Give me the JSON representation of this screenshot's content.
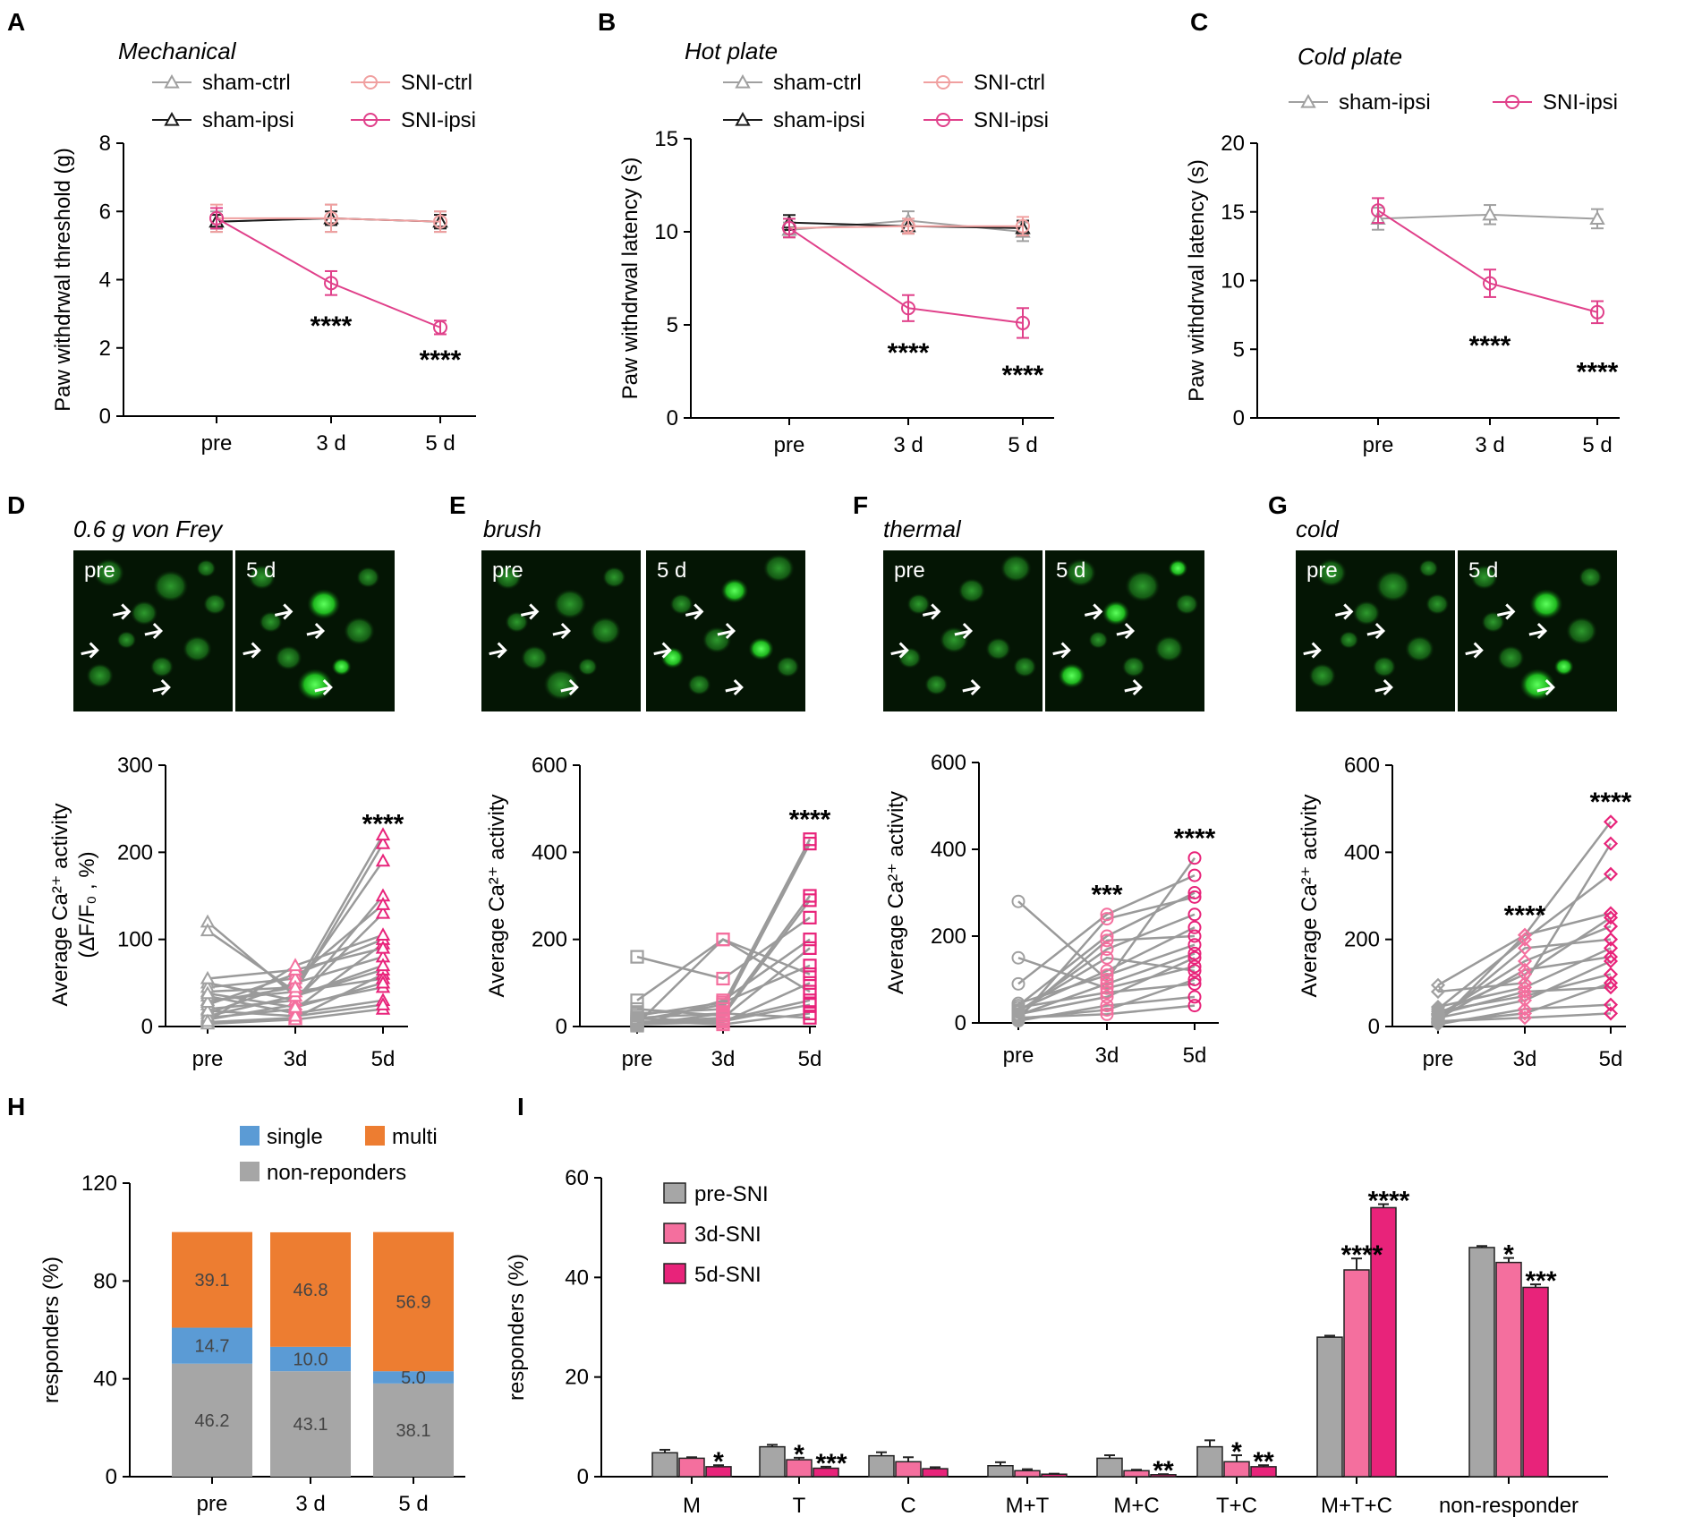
{
  "colors": {
    "gray": "#a0a0a0",
    "black": "#1a1a1a",
    "salmon": "#f0a0a0",
    "pink": "#e0408a",
    "hot": "#e8237a",
    "lightpink": "#f46f9e",
    "blue": "#5b9bd5",
    "orange": "#ed7d31",
    "grayfill": "#a6a6a6",
    "micro_green": "#2e9a2e"
  },
  "panels": {
    "A": "A",
    "B": "B",
    "C": "C",
    "D": "D",
    "E": "E",
    "F": "F",
    "G": "G",
    "H": "H",
    "I": "I"
  },
  "chart_data": [
    {
      "id": "A",
      "type": "line",
      "title": "Mechanical",
      "ylabel": "Paw withdrwal threshold (g)",
      "ylim": [
        0,
        8
      ],
      "yticks": [
        0,
        2,
        4,
        6,
        8
      ],
      "categories": [
        "pre",
        "3 d",
        "5 d"
      ],
      "series": [
        {
          "name": "sham-ctrl",
          "marker": "triangle",
          "color": "#a0a0a0",
          "values": [
            5.7,
            5.8,
            5.7
          ],
          "err": [
            0.3,
            0.4,
            0.3
          ]
        },
        {
          "name": "sham-ipsi",
          "marker": "triangle",
          "color": "#1a1a1a",
          "values": [
            5.7,
            5.8,
            5.7
          ],
          "err": [
            0.2,
            0.2,
            0.2
          ]
        },
        {
          "name": "SNI-ctrl",
          "marker": "circle",
          "color": "#f0a0a0",
          "values": [
            5.8,
            5.8,
            5.7
          ],
          "err": [
            0.4,
            0.4,
            0.3
          ]
        },
        {
          "name": "SNI-ipsi",
          "marker": "circle",
          "color": "#e0408a",
          "values": [
            5.8,
            3.9,
            2.6
          ],
          "err": [
            0.3,
            0.35,
            0.2
          ]
        }
      ],
      "annotations": [
        {
          "x": "3 d",
          "text": "****",
          "y": 2.7
        },
        {
          "x": "5 d",
          "text": "****",
          "y": 1.7
        }
      ]
    },
    {
      "id": "B",
      "type": "line",
      "title": "Hot plate",
      "ylabel": "Paw withdrwal latency (s)",
      "ylim": [
        0,
        15
      ],
      "yticks": [
        0,
        5,
        10,
        15
      ],
      "categories": [
        "pre",
        "3 d",
        "5 d"
      ],
      "series": [
        {
          "name": "sham-ctrl",
          "marker": "triangle",
          "color": "#a0a0a0",
          "values": [
            10.1,
            10.6,
            10.0
          ],
          "err": [
            0.4,
            0.5,
            0.5
          ]
        },
        {
          "name": "sham-ipsi",
          "marker": "triangle",
          "color": "#1a1a1a",
          "values": [
            10.5,
            10.3,
            10.2
          ],
          "err": [
            0.4,
            0.4,
            0.4
          ]
        },
        {
          "name": "SNI-ctrl",
          "marker": "circle",
          "color": "#f0a0a0",
          "values": [
            10.2,
            10.3,
            10.3
          ],
          "err": [
            0.5,
            0.4,
            0.5
          ]
        },
        {
          "name": "SNI-ipsi",
          "marker": "circle",
          "color": "#e0408a",
          "values": [
            10.2,
            5.9,
            5.1
          ],
          "err": [
            0.5,
            0.7,
            0.8
          ]
        }
      ],
      "annotations": [
        {
          "x": "3 d",
          "text": "****",
          "y": 3.6
        },
        {
          "x": "5 d",
          "text": "****",
          "y": 2.4
        }
      ]
    },
    {
      "id": "C",
      "type": "line",
      "title": "Cold plate",
      "ylabel": "Paw withdrwal latency (s)",
      "ylim": [
        0,
        20
      ],
      "yticks": [
        0,
        5,
        10,
        15,
        20
      ],
      "categories": [
        "pre",
        "3 d",
        "5 d"
      ],
      "series": [
        {
          "name": "sham-ipsi",
          "marker": "triangle",
          "color": "#a0a0a0",
          "values": [
            14.5,
            14.8,
            14.5
          ],
          "err": [
            0.8,
            0.7,
            0.7
          ]
        },
        {
          "name": "SNI-ipsi",
          "marker": "circle",
          "color": "#e0408a",
          "values": [
            15.1,
            9.8,
            7.7
          ],
          "err": [
            0.9,
            1.0,
            0.8
          ]
        }
      ],
      "annotations": [
        {
          "x": "3 d",
          "text": "****",
          "y": 5.4
        },
        {
          "x": "5 d",
          "text": "****",
          "y": 3.5
        }
      ]
    },
    {
      "id": "D",
      "type": "scatter",
      "title": "0.6 g von Frey",
      "marker": "triangle",
      "ylabel": "Average Ca²⁺ activity",
      "ylabel2": "(ΔF/F₀ , %)",
      "ylim": [
        0,
        300
      ],
      "yticks": [
        0,
        100,
        200,
        300
      ],
      "categories": [
        "pre",
        "3d",
        "5d"
      ],
      "paired": [
        [
          5,
          10,
          60
        ],
        [
          10,
          20,
          95
        ],
        [
          20,
          30,
          150
        ],
        [
          30,
          40,
          210
        ],
        [
          40,
          45,
          220
        ],
        [
          50,
          30,
          130
        ],
        [
          25,
          60,
          100
        ],
        [
          15,
          50,
          80
        ],
        [
          8,
          25,
          45
        ],
        [
          35,
          15,
          30
        ],
        [
          45,
          55,
          140
        ],
        [
          12,
          35,
          65
        ],
        [
          3,
          8,
          20
        ],
        [
          55,
          65,
          90
        ],
        [
          120,
          35,
          70
        ],
        [
          110,
          40,
          55
        ],
        [
          18,
          12,
          25
        ],
        [
          28,
          45,
          190
        ],
        [
          6,
          70,
          105
        ],
        [
          38,
          22,
          50
        ]
      ],
      "annotations": [
        {
          "x": "5d",
          "text": "****",
          "y": 235
        }
      ]
    },
    {
      "id": "E",
      "type": "scatter",
      "title": "brush",
      "marker": "square",
      "ylabel": "Average Ca²⁺ activity",
      "ylim": [
        0,
        600
      ],
      "yticks": [
        0,
        200,
        400,
        600
      ],
      "categories": [
        "pre",
        "3d",
        "5d"
      ],
      "paired": [
        [
          5,
          10,
          100
        ],
        [
          10,
          20,
          180
        ],
        [
          20,
          30,
          300
        ],
        [
          30,
          40,
          420
        ],
        [
          15,
          50,
          430
        ],
        [
          160,
          110,
          250
        ],
        [
          60,
          200,
          80
        ],
        [
          8,
          15,
          60
        ],
        [
          25,
          55,
          140
        ],
        [
          12,
          5,
          30
        ],
        [
          2,
          60,
          200
        ],
        [
          40,
          25,
          290
        ],
        [
          18,
          12,
          50
        ],
        [
          6,
          200,
          120
        ],
        [
          3,
          30,
          20
        ]
      ],
      "annotations": [
        {
          "x": "5d",
          "text": "****",
          "y": 480
        }
      ]
    },
    {
      "id": "F",
      "type": "scatter",
      "title": "thermal",
      "marker": "circle",
      "ylabel": "Average Ca²⁺ activity",
      "ylim": [
        0,
        600
      ],
      "yticks": [
        0,
        200,
        400,
        600
      ],
      "categories": [
        "pre",
        "3d",
        "5d"
      ],
      "paired": [
        [
          10,
          30,
          100
        ],
        [
          20,
          60,
          150
        ],
        [
          30,
          120,
          220
        ],
        [
          40,
          200,
          300
        ],
        [
          280,
          100,
          380
        ],
        [
          150,
          80,
          130
        ],
        [
          90,
          250,
          340
        ],
        [
          15,
          190,
          200
        ],
        [
          5,
          40,
          60
        ],
        [
          25,
          170,
          250
        ],
        [
          35,
          70,
          90
        ],
        [
          12,
          20,
          40
        ],
        [
          45,
          110,
          180
        ],
        [
          8,
          240,
          290
        ],
        [
          18,
          90,
          160
        ],
        [
          28,
          150,
          120
        ]
      ],
      "annotations": [
        {
          "x": "3d",
          "text": "***",
          "y": 300
        },
        {
          "x": "5d",
          "text": "****",
          "y": 430
        }
      ]
    },
    {
      "id": "G",
      "type": "scatter",
      "title": "cold",
      "marker": "diamond",
      "ylabel": "Average Ca²⁺ activity",
      "ylim": [
        0,
        600
      ],
      "yticks": [
        0,
        200,
        400,
        600
      ],
      "categories": [
        "pre",
        "3d",
        "5d"
      ],
      "paired": [
        [
          10,
          30,
          100
        ],
        [
          20,
          60,
          150
        ],
        [
          30,
          120,
          250
        ],
        [
          40,
          200,
          350
        ],
        [
          95,
          210,
          470
        ],
        [
          80,
          100,
          420
        ],
        [
          15,
          180,
          200
        ],
        [
          5,
          40,
          50
        ],
        [
          25,
          150,
          230
        ],
        [
          35,
          70,
          120
        ],
        [
          12,
          20,
          30
        ],
        [
          45,
          90,
          180
        ],
        [
          8,
          210,
          260
        ],
        [
          18,
          130,
          160
        ],
        [
          28,
          80,
          90
        ]
      ],
      "annotations": [
        {
          "x": "3d",
          "text": "****",
          "y": 260
        },
        {
          "x": "5d",
          "text": "****",
          "y": 520
        }
      ]
    },
    {
      "id": "H",
      "type": "bar",
      "stacked": true,
      "ylabel": "responders (%)",
      "ylim": [
        0,
        120
      ],
      "yticks": [
        0,
        40,
        80,
        120
      ],
      "categories": [
        "pre",
        "3 d",
        "5 d"
      ],
      "series": [
        {
          "name": "non-reponders",
          "color": "#a6a6a6",
          "values": [
            46.2,
            43.1,
            38.1
          ],
          "labels": [
            "46.2",
            "43.1",
            "38.1"
          ]
        },
        {
          "name": "single",
          "color": "#5b9bd5",
          "values": [
            14.7,
            10.0,
            5.0
          ],
          "labels": [
            "14.7",
            "10.0",
            "5.0"
          ]
        },
        {
          "name": "multi",
          "color": "#ed7d31",
          "values": [
            39.1,
            46.8,
            56.9
          ],
          "labels": [
            "39.1",
            "46.8",
            "56.9"
          ]
        }
      ]
    },
    {
      "id": "I",
      "type": "bar",
      "ylabel": "responders (%)",
      "ylim": [
        0,
        60
      ],
      "yticks": [
        0,
        20,
        40,
        60
      ],
      "categories": [
        "M",
        "T",
        "C",
        "M+T",
        "M+C",
        "T+C",
        "M+T+C",
        "non-responder"
      ],
      "series": [
        {
          "name": "pre-SNI",
          "color": "#a6a6a6",
          "values": [
            4.8,
            6.0,
            4.2,
            2.2,
            3.7,
            6.0,
            28.0,
            46.0
          ],
          "err": [
            0.6,
            0.4,
            0.7,
            0.7,
            0.6,
            1.3,
            0.3,
            0.3
          ]
        },
        {
          "name": "3d-SNI",
          "color": "#f46f9e",
          "values": [
            3.7,
            3.4,
            3.0,
            1.2,
            1.2,
            3.0,
            41.5,
            43.0
          ],
          "err": [
            0.2,
            0.4,
            0.9,
            0.3,
            0.2,
            1.3,
            2.3,
            0.9
          ]
        },
        {
          "name": "5d-SNI",
          "color": "#e8237a",
          "values": [
            2.0,
            1.7,
            1.6,
            0.5,
            0.4,
            2.0,
            54.0,
            38.0
          ],
          "err": [
            0.3,
            0.3,
            0.3,
            0.1,
            0.1,
            0.3,
            0.7,
            0.6
          ]
        }
      ],
      "annotations": [
        {
          "cat": "M",
          "series": "5d-SNI",
          "text": "*"
        },
        {
          "cat": "T",
          "series": "3d-SNI",
          "text": "*"
        },
        {
          "cat": "T",
          "series": "5d-SNI",
          "text": "***"
        },
        {
          "cat": "M+C",
          "series": "5d-SNI",
          "text": "**"
        },
        {
          "cat": "T+C",
          "series": "3d-SNI",
          "text": "*"
        },
        {
          "cat": "T+C",
          "series": "5d-SNI",
          "text": "**"
        },
        {
          "cat": "M+T+C",
          "series": "3d-SNI",
          "text": "****"
        },
        {
          "cat": "M+T+C",
          "series": "5d-SNI",
          "text": "****"
        },
        {
          "cat": "non-responder",
          "series": "3d-SNI",
          "text": "*"
        },
        {
          "cat": "non-responder",
          "series": "5d-SNI",
          "text": "***"
        }
      ]
    }
  ],
  "micrographs": {
    "pre": "pre",
    "post": "5 d"
  }
}
